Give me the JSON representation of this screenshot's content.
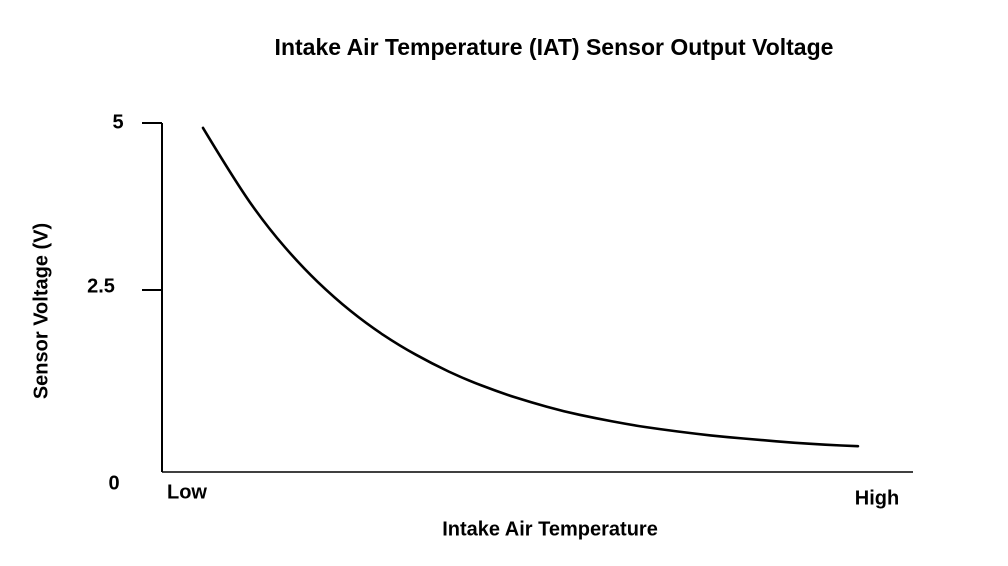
{
  "chart_data": {
    "type": "line",
    "title": "Intake Air Temperature (IAT) Sensor Output Voltage",
    "xlabel": "Intake Air Temperature",
    "ylabel": "Sensor Voltage (V)",
    "x_axis_type": "qualitative",
    "x_tick_labels": [
      "Low",
      "High"
    ],
    "y_tick_labels": [
      "5",
      "2.5",
      "0"
    ],
    "y_ticks": [
      5,
      2.5,
      0
    ],
    "ylim": [
      0,
      5
    ],
    "grid": false,
    "legend": "none",
    "curve_shape": "exponential-decay",
    "line_color": "#000000",
    "series": [
      {
        "name": "IAT sensor output voltage",
        "x_relative_temperature": [
          0,
          0.05,
          0.1,
          0.15,
          0.2,
          0.25,
          0.3,
          0.35,
          0.4,
          0.45,
          0.5,
          0.55,
          0.6,
          0.65,
          0.7,
          0.75,
          0.8,
          0.85,
          0.9,
          0.95,
          1
        ],
        "voltage": [
          4.93,
          4.15,
          3.49,
          2.95,
          2.5,
          2.12,
          1.81,
          1.55,
          1.33,
          1.15,
          1.0,
          0.87,
          0.77,
          0.68,
          0.61,
          0.55,
          0.5,
          0.46,
          0.42,
          0.39,
          0.37
        ]
      }
    ]
  }
}
